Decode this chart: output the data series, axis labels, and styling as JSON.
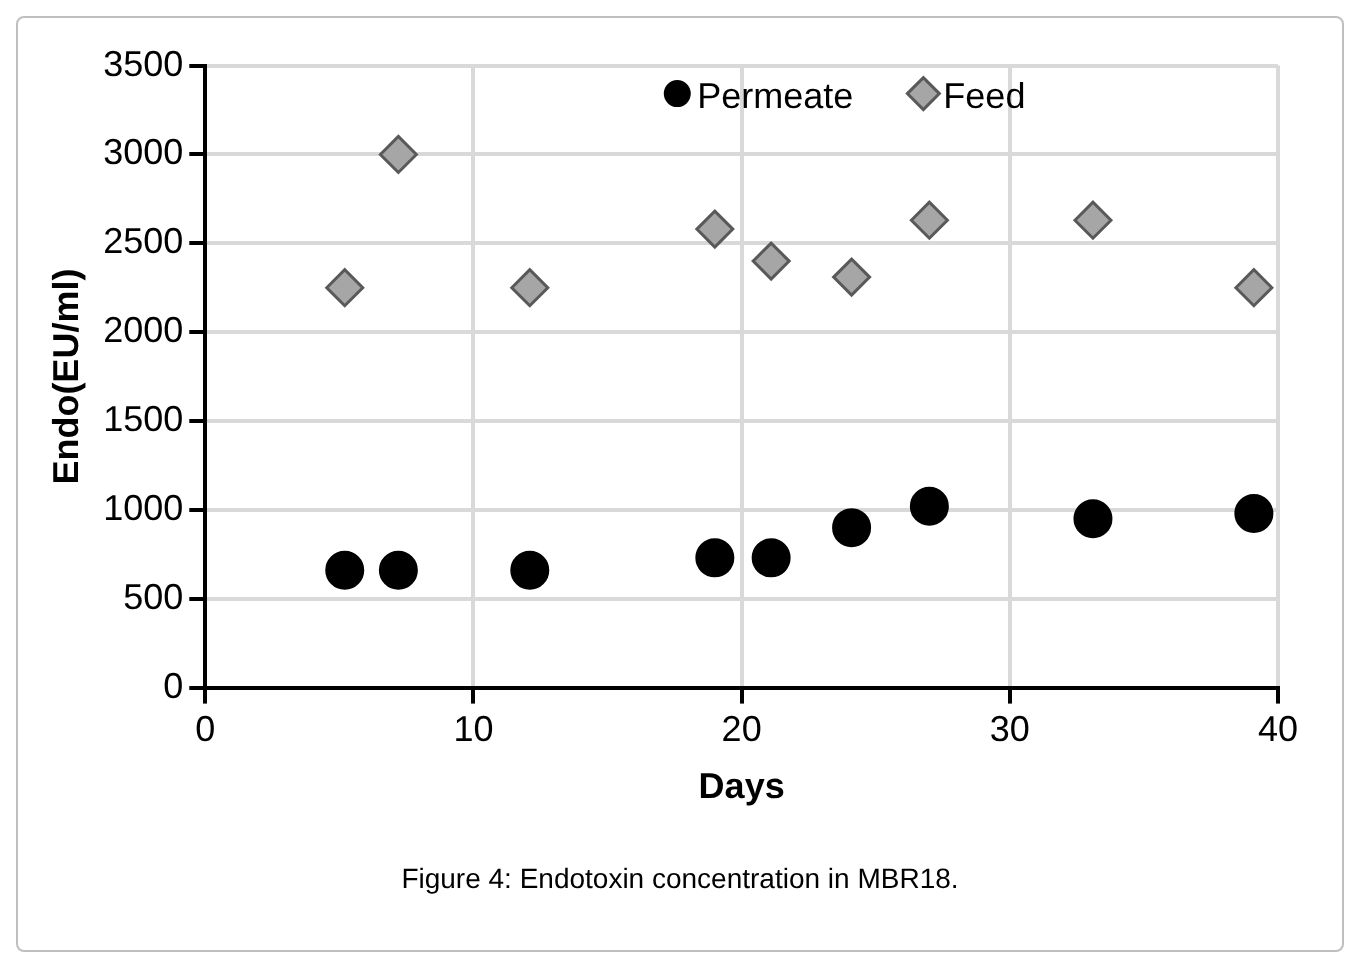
{
  "chart_data": {
    "type": "scatter",
    "xlabel": "Days",
    "ylabel": "Endo(EU/ml)",
    "annotations": [
      "Figure 4: Endotoxin concentration in MBR18."
    ],
    "x": [
      5.2,
      7.2,
      12.1,
      19,
      21.1,
      24.1,
      27,
      33.1,
      39.1
    ],
    "series": [
      {
        "name": "Permeate",
        "color": "#000000",
        "marker": "circle",
        "values": [
          660,
          660,
          660,
          730,
          730,
          900,
          1020,
          950,
          980
        ]
      },
      {
        "name": "Feed",
        "color": "#a6a6a6",
        "marker": "diamond",
        "values": [
          2250,
          3000,
          2250,
          2580,
          2400,
          2310,
          2630,
          2630,
          2250
        ]
      }
    ],
    "xlim": [
      0,
      40
    ],
    "xticks": [
      0,
      10,
      20,
      30,
      40
    ],
    "ylim": [
      0,
      3500
    ],
    "yticks": [
      0,
      500,
      1000,
      1500,
      2000,
      2500,
      3000,
      3500
    ],
    "grid": true,
    "legend": "top right"
  }
}
